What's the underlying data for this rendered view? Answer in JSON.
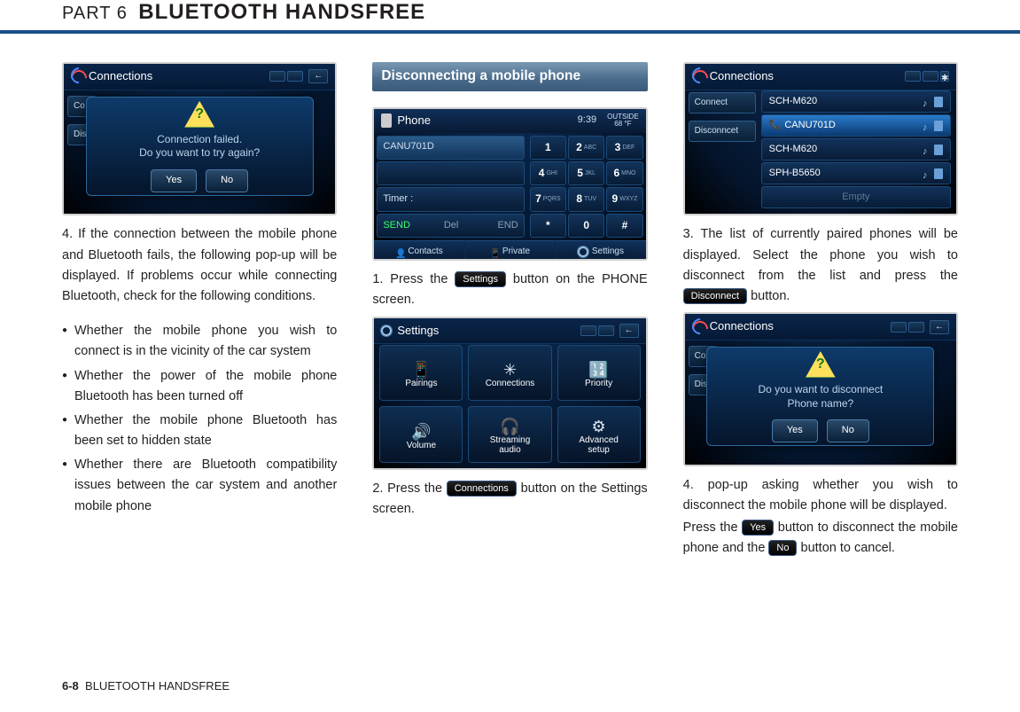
{
  "header": {
    "part": "PART 6",
    "title": "BLUETOOTH HANDSFREE"
  },
  "footer": {
    "pageNum": "6-8",
    "section": "BLUETOOTH HANDSFREE"
  },
  "col1": {
    "mock1": {
      "title": "Connections",
      "dialogLine1": "Connection failed.",
      "dialogLine2": "Do you want to try again?",
      "yes": "Yes",
      "no": "No",
      "tab1": "Co",
      "tab2": "Disc"
    },
    "step4": "If the connection between the mobile phone and Bluetooth fails, the following pop-up will be displayed. If problems occur while connecting Bluetooth, check for the following conditions.",
    "bullets": [
      "Whether the mobile phone you wish to connect is in the vicinity of the car system",
      "Whether the power of the mobile phone Bluetooth has been turned off",
      "Whether the mobile phone Bluetooth has been set to hidden state",
      "Whether there are Bluetooth compatibility issues between the car system and another mobile phone"
    ]
  },
  "col2": {
    "heading": "Disconnecting a mobile phone",
    "phoneMock": {
      "title": "Phone",
      "time": "9:39",
      "tempTop": "OUTSIDE",
      "temp": "68 °F",
      "device": "CANU701D",
      "timerLbl": "Timer :",
      "send": "SEND",
      "del": "Del",
      "end": "END",
      "keys": [
        {
          "n": "1",
          "l": ""
        },
        {
          "n": "2",
          "l": "ABC"
        },
        {
          "n": "3",
          "l": "DEF"
        },
        {
          "n": "4",
          "l": "GHI"
        },
        {
          "n": "5",
          "l": "JKL"
        },
        {
          "n": "6",
          "l": "MNO"
        },
        {
          "n": "7",
          "l": "PQRS"
        },
        {
          "n": "8",
          "l": "TUV"
        },
        {
          "n": "9",
          "l": "WXYZ"
        },
        {
          "n": "*",
          "l": ""
        },
        {
          "n": "0",
          "l": ""
        },
        {
          "n": "#",
          "l": ""
        }
      ],
      "bottom": [
        "Contacts",
        "Private",
        "Settings"
      ]
    },
    "step1a": "Press the ",
    "step1btn": "Settings",
    "step1b": " button on the PHONE screen.",
    "settingsMock": {
      "title": "Settings",
      "tiles": [
        "Pairings",
        "Connections",
        "Priority",
        "Volume",
        "Streaming\naudio",
        "Advanced\nsetup"
      ]
    },
    "step2a": "Press the ",
    "step2btn": "Connections",
    "step2b": " button on the Settings screen."
  },
  "col3": {
    "connMock": {
      "title": "Connections",
      "tab1": "Connect",
      "tab2": "Disconncet",
      "rows": [
        {
          "name": "SCH-M620",
          "sel": false
        },
        {
          "name": "CANU701D",
          "sel": true
        },
        {
          "name": "SCH-M620",
          "sel": false
        },
        {
          "name": "SPH-B5650",
          "sel": false
        }
      ],
      "empty": "Empty"
    },
    "step3a": "The list of currently paired phones will be displayed. Select the phone you wish to disconnect from the list and press the ",
    "step3btn": "Disconnect",
    "step3b": " button.",
    "discMock": {
      "title": "Connections",
      "tab1": "Co",
      "tab2": "Disc",
      "line1": "Do you want to disconnect",
      "line2": "Phone name?",
      "yes": "Yes",
      "no": "No"
    },
    "step4a": "pop-up asking whether you wish to disconnect the mobile phone will be displayed.",
    "step4b": "Press the ",
    "step4yes": "Yes",
    "step4c": " button to disconnect the mobile phone and the ",
    "step4no": "No",
    "step4d": " button to cancel."
  }
}
